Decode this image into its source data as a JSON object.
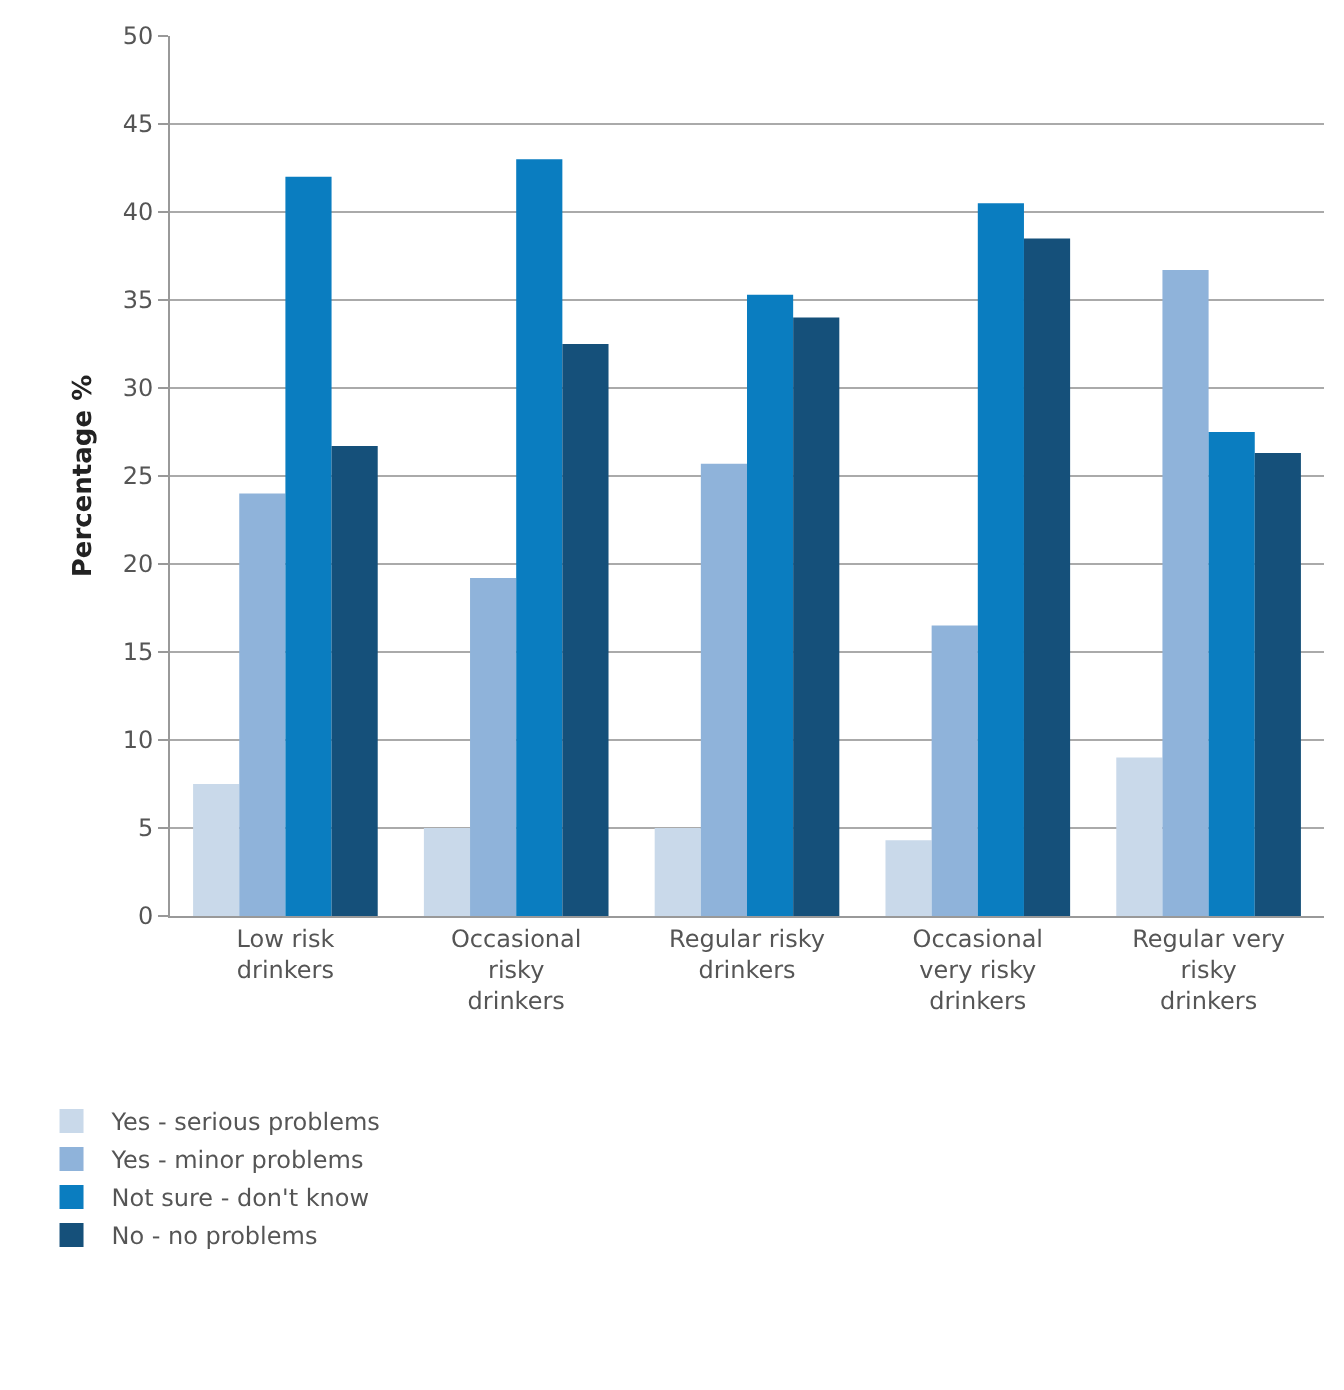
{
  "chart_data": {
    "type": "bar",
    "ylabel": "Percentage %",
    "categories": [
      "Low risk drinkers",
      "Occasional risky drinkers",
      "Regular risky drinkers",
      "Occasional very risky drinkers",
      "Regular very risky drinkers"
    ],
    "series": [
      {
        "name": "Yes - serious problems",
        "color": "#c9d9ea",
        "values": [
          7.5,
          5,
          5,
          4.3,
          9
        ]
      },
      {
        "name": "Yes - minor problems",
        "color": "#8fb3da",
        "values": [
          24,
          19.2,
          25.7,
          16.5,
          36.7
        ]
      },
      {
        "name": "Not sure - don't know",
        "color": "#0a7dc0",
        "values": [
          42,
          43,
          35.3,
          40.5,
          27.5
        ]
      },
      {
        "name": "No - no problems",
        "color": "#15507a",
        "values": [
          26.7,
          32.5,
          34,
          38.5,
          26.3
        ]
      }
    ],
    "ylim": [
      0,
      50
    ],
    "yticks": [
      0,
      5,
      10,
      15,
      20,
      25,
      30,
      35,
      40,
      45,
      50
    ],
    "grid": "y",
    "legend": "bottom left"
  }
}
